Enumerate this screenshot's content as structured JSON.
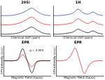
{
  "chart_data": [
    {
      "type": "line",
      "title": "29Si",
      "x_label": "Chemical shift (ppm)",
      "x": [
        -60,
        -70,
        -80,
        -90,
        -100,
        -110,
        -120,
        -130,
        -140
      ],
      "series": [
        {
          "color": "#000000",
          "values": [
            0,
            0,
            0.1,
            0.4,
            1.2,
            2.0,
            1.0,
            0.2,
            0
          ]
        },
        {
          "color": "#e41a1c",
          "values": [
            2.6,
            2.6,
            2.7,
            3.1,
            3.9,
            4.8,
            3.6,
            2.8,
            2.6
          ]
        },
        {
          "color": "#1f3fbf",
          "values": [
            5.2,
            5.2,
            5.3,
            5.7,
            6.4,
            7.3,
            6.2,
            5.4,
            5.2
          ]
        }
      ],
      "xlim": [
        -60,
        -140
      ],
      "ylim": [
        -0.5,
        8
      ],
      "grid": false,
      "tick_labels": false
    },
    {
      "type": "line",
      "title": "1H",
      "x_label": "Chemical shift (ppm)",
      "x": [
        10,
        9,
        8,
        7,
        6,
        5,
        4,
        3,
        2,
        1,
        0
      ],
      "series": [
        {
          "color": "#000000",
          "values": [
            0,
            0,
            0.1,
            0.3,
            0.6,
            1.4,
            0.8,
            0.4,
            0.9,
            0.3,
            0
          ]
        },
        {
          "color": "#e41a1c",
          "values": [
            2.6,
            2.6,
            2.7,
            2.9,
            3.3,
            4.3,
            3.5,
            3.0,
            3.6,
            2.9,
            2.6
          ]
        },
        {
          "color": "#1f3fbf",
          "values": [
            5.2,
            5.2,
            5.3,
            5.5,
            5.9,
            7.0,
            6.0,
            5.6,
            6.2,
            5.5,
            5.2
          ]
        }
      ],
      "xlim": [
        10,
        0
      ],
      "ylim": [
        -0.5,
        8
      ],
      "grid": false,
      "tick_labels": false
    },
    {
      "type": "line",
      "title": "EPR",
      "x_label": "Magnetic Field (Gauss)",
      "y_label": "EPR intensity (a.u.)",
      "x": [
        3300,
        3310,
        3320,
        3330,
        3340,
        3350,
        3360,
        3370,
        3380,
        3390,
        3400
      ],
      "series": [
        {
          "color": "#000000",
          "values": [
            0,
            0,
            0,
            0.1,
            0.8,
            0,
            -0.8,
            -0.1,
            0,
            0,
            0
          ]
        },
        {
          "color": "#e41a1c",
          "values": [
            0,
            0,
            0,
            0.05,
            0.4,
            0,
            -0.4,
            -0.05,
            0,
            0,
            0
          ]
        }
      ],
      "xlim": [
        3300,
        3400
      ],
      "ylim": [
        -1,
        1
      ],
      "grid": false,
      "tick_labels": false,
      "annotations": [
        {
          "text": "g = 2.003",
          "x": 3355,
          "y": 0.7
        }
      ]
    },
    {
      "type": "line",
      "title": "EPR",
      "x_label": "Magnetic Field (Gauss)",
      "y_label": "EPR intensity (a.u.)",
      "x": [
        3300,
        3310,
        3320,
        3330,
        3340,
        3350,
        3360,
        3370,
        3380,
        3390,
        3400
      ],
      "series": [
        {
          "color": "#e41a1c",
          "values": [
            0,
            0,
            0.05,
            0.3,
            0.85,
            0,
            -0.85,
            -0.3,
            -0.05,
            0,
            0
          ]
        }
      ],
      "xlim": [
        3300,
        3400
      ],
      "ylim": [
        -1,
        1
      ],
      "grid": false,
      "tick_labels": false
    }
  ]
}
